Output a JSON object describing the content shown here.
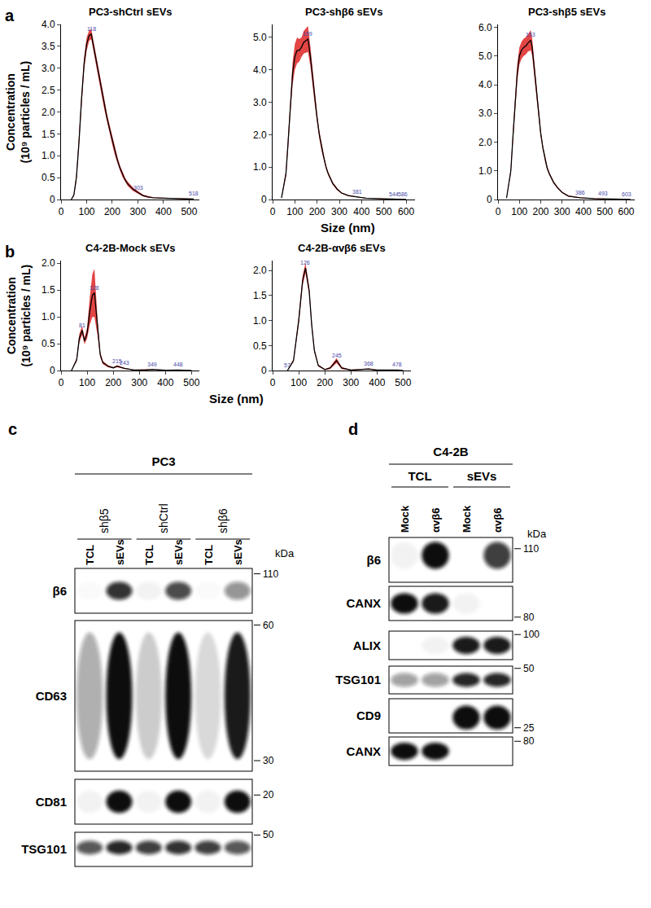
{
  "chart_data": [
    {
      "type": "line",
      "panel": "a",
      "title": "PC3-shCtrl sEVs",
      "color": "#000000",
      "x": [
        40,
        50,
        60,
        70,
        80,
        90,
        100,
        110,
        118,
        130,
        140,
        150,
        160,
        170,
        180,
        190,
        200,
        210,
        220,
        230,
        240,
        250,
        260,
        280,
        303,
        320,
        340,
        360,
        400,
        450,
        518
      ],
      "values": [
        0,
        0.1,
        0.5,
        1.3,
        2.3,
        3.1,
        3.55,
        3.75,
        3.78,
        3.4,
        3.05,
        2.75,
        2.45,
        2.15,
        1.85,
        1.6,
        1.35,
        1.1,
        0.9,
        0.72,
        0.57,
        0.45,
        0.36,
        0.24,
        0.15,
        0.09,
        0.06,
        0.04,
        0.03,
        0.02,
        0.01
      ],
      "error": [
        0,
        0.02,
        0.08,
        0.12,
        0.15,
        0.15,
        0.15,
        0.12,
        0.12,
        0.12,
        0.12,
        0.12,
        0.12,
        0.12,
        0.1,
        0.1,
        0.1,
        0.08,
        0.08,
        0.06,
        0.06,
        0.05,
        0.05,
        0.04,
        0.03,
        0.02,
        0.02,
        0.01,
        0.01,
        0.01,
        0.01
      ],
      "xlim": [
        0,
        540
      ],
      "xticks": [
        0,
        100,
        200,
        300,
        400,
        500
      ],
      "ylim": [
        0,
        4
      ],
      "yticks": [
        0,
        0.5,
        {
          "value": 1,
          "label": "1.0"
        },
        1.5,
        {
          "value": 2,
          "label": "2.0"
        },
        2.5,
        {
          "value": 3,
          "label": "3.0"
        },
        3.5,
        {
          "value": 4,
          "label": "4.0"
        }
      ],
      "annotations": [
        {
          "x": 118,
          "y": 3.78,
          "text": "118"
        },
        {
          "x": 303,
          "y": 0.15,
          "text": "303"
        },
        {
          "x": 518,
          "y": 0.01,
          "text": "518"
        }
      ]
    },
    {
      "type": "line",
      "panel": "a",
      "title": "PC3-shβ6 sEVs",
      "color": "#000000",
      "x": [
        40,
        60,
        70,
        80,
        90,
        100,
        110,
        120,
        130,
        140,
        159,
        170,
        180,
        190,
        200,
        210,
        220,
        230,
        240,
        250,
        270,
        290,
        310,
        340,
        381,
        420,
        500,
        544,
        586,
        600
      ],
      "values": [
        0.05,
        0.8,
        1.8,
        3.0,
        3.9,
        4.4,
        4.6,
        4.6,
        4.7,
        4.85,
        4.95,
        4.4,
        3.75,
        3.1,
        2.5,
        2.0,
        1.6,
        1.3,
        1.0,
        0.8,
        0.5,
        0.32,
        0.2,
        0.12,
        0.08,
        0.04,
        0.02,
        0.01,
        0.01,
        0.005
      ],
      "error": [
        0.01,
        0.1,
        0.2,
        0.3,
        0.35,
        0.4,
        0.4,
        0.35,
        0.3,
        0.35,
        0.4,
        0.3,
        0.25,
        0.2,
        0.15,
        0.12,
        0.1,
        0.08,
        0.06,
        0.05,
        0.04,
        0.03,
        0.02,
        0.02,
        0.01,
        0.01,
        0.01,
        0.005,
        0.005,
        0.005
      ],
      "xlim": [
        0,
        640
      ],
      "xticks": [
        0,
        100,
        200,
        300,
        400,
        500,
        600
      ],
      "ylim": [
        0,
        5.4
      ],
      "yticks": [
        0,
        {
          "value": 1,
          "label": "1.0"
        },
        {
          "value": 2,
          "label": "2.0"
        },
        {
          "value": 3,
          "label": "3.0"
        },
        {
          "value": 4,
          "label": "4.0"
        },
        {
          "value": 5,
          "label": "5.0"
        }
      ],
      "annotations": [
        {
          "x": 159,
          "y": 4.95,
          "text": "159"
        },
        {
          "x": 381,
          "y": 0.08,
          "text": "381"
        },
        {
          "x": 544,
          "y": 0.01,
          "text": "544"
        },
        {
          "x": 586,
          "y": 0.01,
          "text": "586"
        }
      ]
    },
    {
      "type": "line",
      "panel": "a",
      "title": "PC3-shβ5 sEVs",
      "color": "#000000",
      "x": [
        40,
        60,
        70,
        80,
        90,
        100,
        110,
        120,
        130,
        140,
        153,
        160,
        170,
        180,
        190,
        200,
        210,
        220,
        230,
        240,
        260,
        280,
        300,
        330,
        386,
        450,
        493,
        560,
        603,
        620
      ],
      "values": [
        0.05,
        1.0,
        2.2,
        3.4,
        4.4,
        5.0,
        5.2,
        5.3,
        5.35,
        5.45,
        5.55,
        5.3,
        4.6,
        3.8,
        3.0,
        2.3,
        1.8,
        1.4,
        1.1,
        0.9,
        0.6,
        0.4,
        0.25,
        0.12,
        0.06,
        0.03,
        0.02,
        0.01,
        0.01,
        0.005
      ],
      "error": [
        0.01,
        0.1,
        0.2,
        0.25,
        0.3,
        0.3,
        0.3,
        0.3,
        0.3,
        0.3,
        0.35,
        0.3,
        0.25,
        0.2,
        0.15,
        0.12,
        0.1,
        0.08,
        0.06,
        0.05,
        0.04,
        0.03,
        0.02,
        0.02,
        0.01,
        0.01,
        0.01,
        0.005,
        0.005,
        0.005
      ],
      "xlim": [
        0,
        640
      ],
      "xticks": [
        0,
        100,
        200,
        300,
        400,
        500,
        600
      ],
      "ylim": [
        0,
        6.1
      ],
      "yticks": [
        0,
        {
          "value": 1,
          "label": "1.0"
        },
        {
          "value": 2,
          "label": "2.0"
        },
        {
          "value": 3,
          "label": "3.0"
        },
        {
          "value": 4,
          "label": "4.0"
        },
        {
          "value": 5,
          "label": "5.0"
        },
        {
          "value": 6,
          "label": "6.0"
        }
      ],
      "annotations": [
        {
          "x": 153,
          "y": 5.55,
          "text": "153"
        },
        {
          "x": 386,
          "y": 0.06,
          "text": "386"
        },
        {
          "x": 493,
          "y": 0.02,
          "text": "493"
        },
        {
          "x": 603,
          "y": 0.01,
          "text": "603"
        }
      ]
    },
    {
      "type": "line",
      "panel": "b",
      "title": "C4-2B-Mock sEVs",
      "color": "#000000",
      "x": [
        40,
        60,
        70,
        81,
        90,
        100,
        110,
        120,
        128,
        140,
        150,
        160,
        180,
        200,
        215,
        243,
        280,
        320,
        349,
        400,
        448,
        500
      ],
      "values": [
        0,
        0.2,
        0.6,
        0.75,
        0.55,
        0.7,
        1.1,
        1.4,
        1.45,
        0.8,
        0.3,
        0.15,
        0.08,
        0.05,
        0.08,
        0.04,
        0.01,
        0.01,
        0.02,
        0.005,
        0.01,
        0
      ],
      "error": [
        0,
        0.03,
        0.08,
        0.08,
        0.06,
        0.1,
        0.25,
        0.4,
        0.45,
        0.15,
        0.05,
        0.03,
        0.02,
        0.01,
        0.02,
        0.01,
        0.005,
        0.005,
        0.005,
        0.005,
        0.005,
        0
      ],
      "xlim": [
        0,
        530
      ],
      "xticks": [
        0,
        100,
        200,
        300,
        400,
        500
      ],
      "ylim": [
        0,
        2.05
      ],
      "yticks": [
        0,
        0.5,
        {
          "value": 1,
          "label": "1.0"
        },
        1.5,
        {
          "value": 2,
          "label": "2.0"
        }
      ],
      "annotations": [
        {
          "x": 81,
          "y": 0.75,
          "text": "81"
        },
        {
          "x": 128,
          "y": 1.45,
          "text": "128"
        },
        {
          "x": 215,
          "y": 0.08,
          "text": "215"
        },
        {
          "x": 243,
          "y": 0.04,
          "text": "243"
        },
        {
          "x": 349,
          "y": 0.02,
          "text": "349"
        },
        {
          "x": 448,
          "y": 0.01,
          "text": "448"
        }
      ]
    },
    {
      "type": "line",
      "panel": "b",
      "title": "C4-2B-αvβ6 sEVs",
      "color": "#000000",
      "x": [
        57,
        80,
        100,
        115,
        126,
        140,
        150,
        160,
        175,
        200,
        220,
        245,
        265,
        300,
        368,
        400,
        478,
        500
      ],
      "values": [
        0,
        0.2,
        1.0,
        1.8,
        2.05,
        1.6,
        0.9,
        0.4,
        0.1,
        0.02,
        0.05,
        0.2,
        0.05,
        0.01,
        0.03,
        0.01,
        0.01,
        0
      ],
      "error": [
        0,
        0.03,
        0.08,
        0.1,
        0.1,
        0.08,
        0.06,
        0.04,
        0.02,
        0.01,
        0.02,
        0.05,
        0.02,
        0.005,
        0.01,
        0.005,
        0.005,
        0
      ],
      "xlim": [
        0,
        530
      ],
      "xticks": [
        0,
        100,
        200,
        300,
        400,
        500
      ],
      "ylim": [
        0,
        2.2
      ],
      "yticks": [
        0,
        0.5,
        {
          "value": 1,
          "label": "1.0"
        },
        1.5,
        {
          "value": 2,
          "label": "2.0"
        }
      ],
      "annotations": [
        {
          "x": 57,
          "y": 0,
          "text": "57"
        },
        {
          "x": 126,
          "y": 2.05,
          "text": "126"
        },
        {
          "x": 245,
          "y": 0.2,
          "text": "245"
        },
        {
          "x": 368,
          "y": 0.03,
          "text": "368"
        },
        {
          "x": 478,
          "y": 0.01,
          "text": "478"
        }
      ]
    }
  ],
  "panels": [
    {
      "label": "a",
      "x_label": "Size (nm)",
      "y_label": "Concentration\n(10⁹ particles / mL)"
    },
    {
      "label": "b",
      "x_label": "Size (nm)",
      "y_label": "Concentration\n(10⁹ particles / mL)"
    },
    {
      "label": "c"
    },
    {
      "label": "d"
    }
  ],
  "blots": [
    {
      "panel": "c",
      "cell_line": "PC3",
      "unit": "kDa",
      "groups": [
        {
          "name": "shβ5",
          "lanes": [
            "TCL",
            "sEVs"
          ]
        },
        {
          "name": "shCtrl",
          "lanes": [
            "TCL",
            "sEVs"
          ]
        },
        {
          "name": "shβ6",
          "lanes": [
            "TCL",
            "sEVs"
          ]
        }
      ],
      "rows": [
        {
          "protein": "β6",
          "markers": [
            110
          ],
          "intensity": [
            0.02,
            0.85,
            0.05,
            0.75,
            0.02,
            0.45
          ]
        },
        {
          "protein": "CD63",
          "markers": [
            60,
            30
          ],
          "intensity": [
            0.35,
            1,
            0.2,
            1,
            0.15,
            0.95
          ]
        },
        {
          "protein": "CD81",
          "markers": [
            20
          ],
          "intensity": [
            0.05,
            1,
            0.05,
            1,
            0.05,
            1
          ]
        },
        {
          "protein": "TSG101",
          "markers": [
            50
          ],
          "intensity": [
            0.7,
            0.9,
            0.8,
            0.85,
            0.8,
            0.7
          ]
        }
      ]
    },
    {
      "panel": "d",
      "cell_line": "C4-2B",
      "unit": "kDa",
      "groups": [
        {
          "name": "TCL",
          "lanes": [
            "Mock",
            "αvβ6"
          ]
        },
        {
          "name": "sEVs",
          "lanes": [
            "Mock",
            "αvβ6"
          ]
        }
      ],
      "rows": [
        {
          "protein": "β6",
          "markers": [
            110
          ],
          "intensity": [
            0.05,
            1,
            0,
            0.8
          ]
        },
        {
          "protein": "CANX",
          "markers": [
            80
          ],
          "intensity": [
            1,
            0.95,
            0.05,
            0
          ]
        },
        {
          "protein": "ALIX",
          "markers": [
            100
          ],
          "intensity": [
            0,
            0.05,
            0.95,
            0.95
          ]
        },
        {
          "protein": "TSG101",
          "markers": [
            50
          ],
          "intensity": [
            0.4,
            0.4,
            0.9,
            0.9
          ]
        },
        {
          "protein": "CD9",
          "markers": [
            25
          ],
          "intensity": [
            0,
            0,
            1,
            1
          ]
        },
        {
          "protein": "CANX",
          "markers": [
            80
          ],
          "intensity": [
            1,
            1,
            0,
            0
          ]
        }
      ]
    }
  ]
}
